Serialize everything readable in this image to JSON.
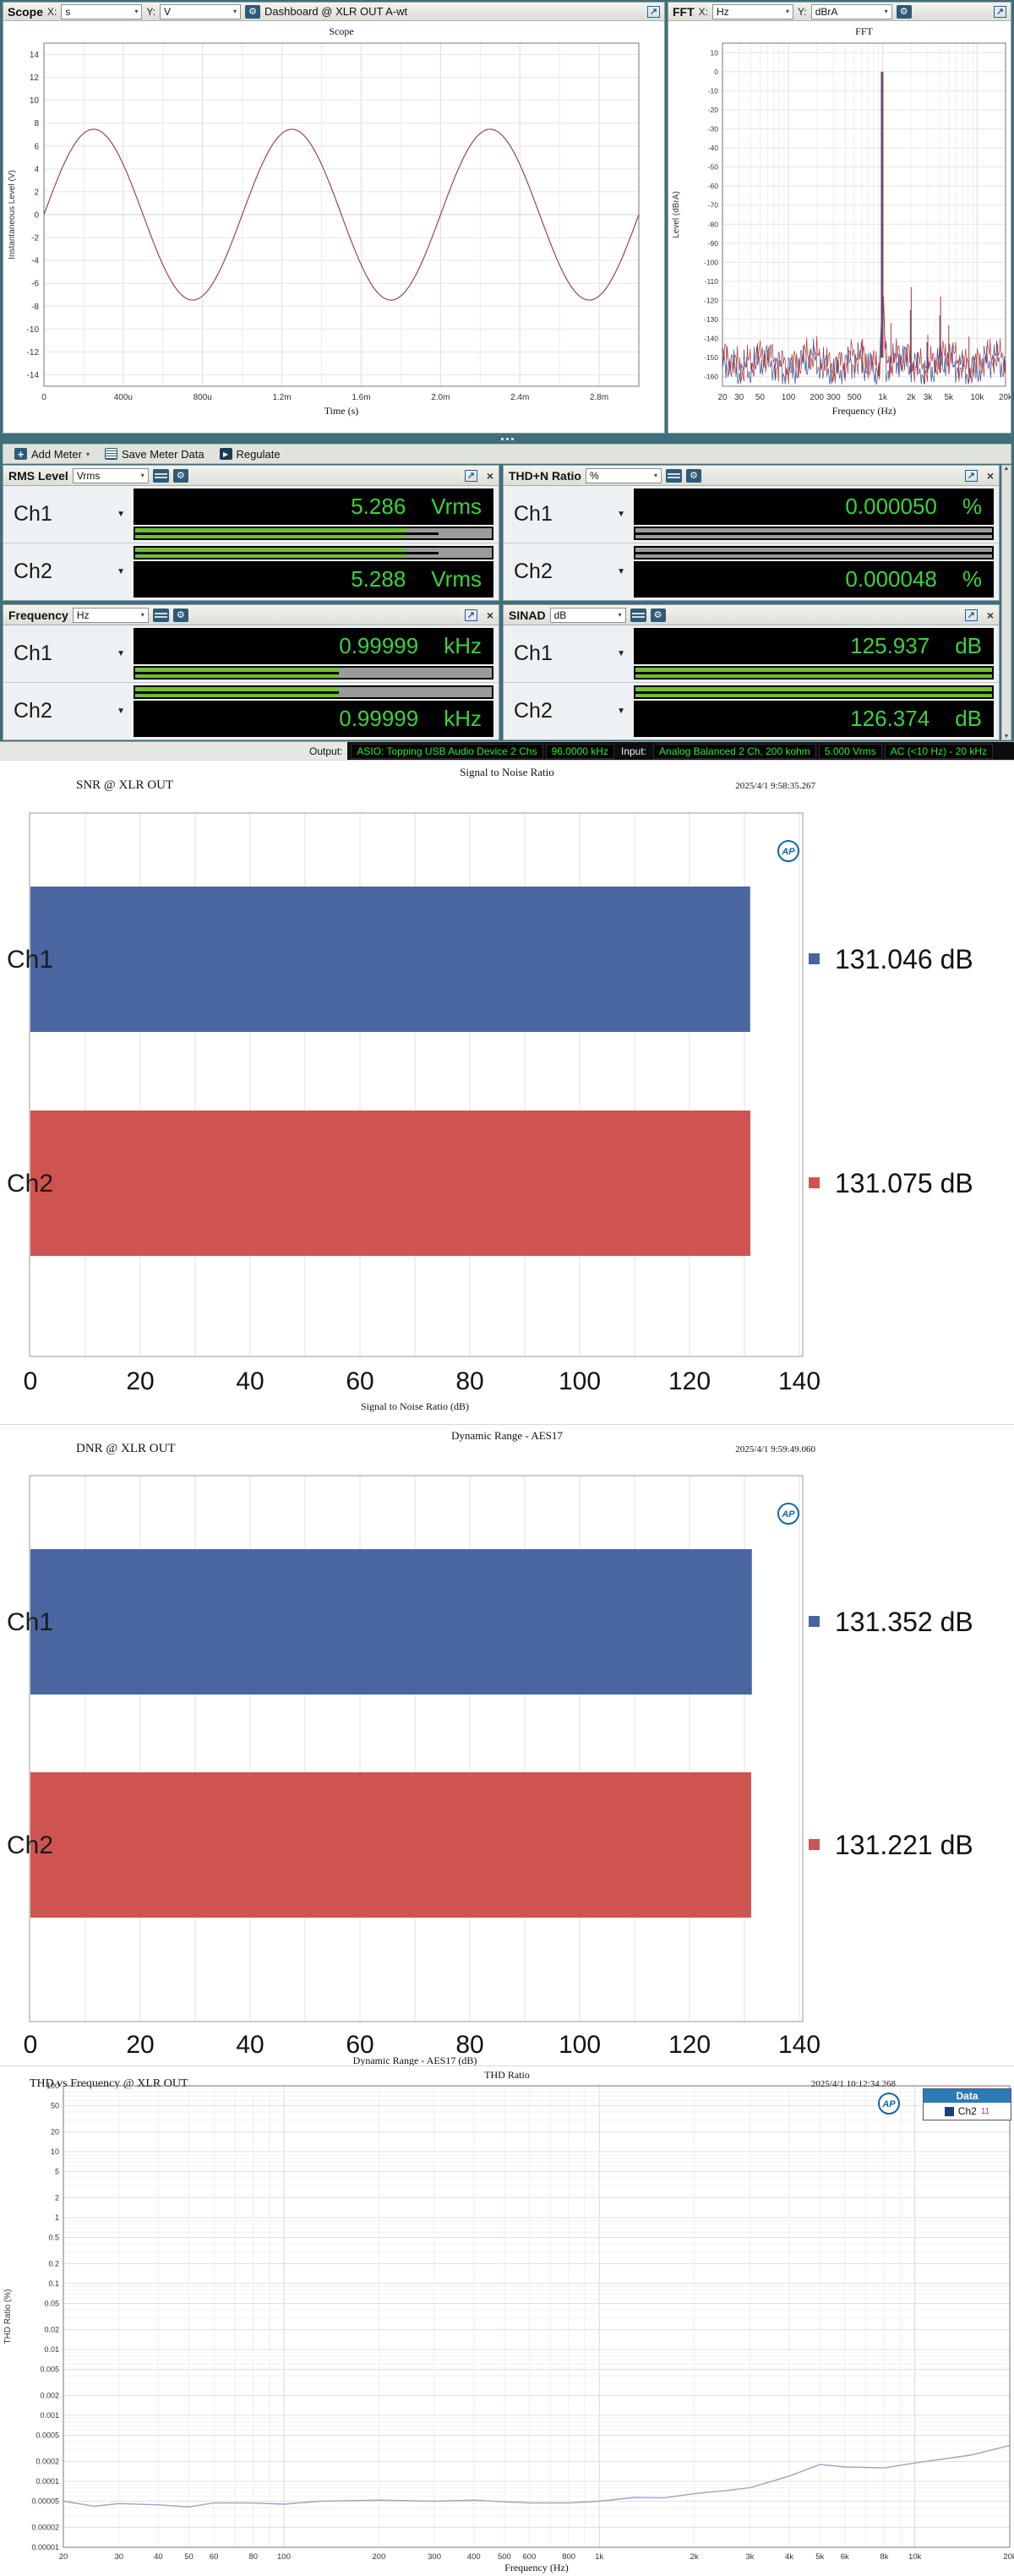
{
  "window": {
    "scope_header": {
      "title": "Scope",
      "x_label": "X:",
      "x_unit": "s",
      "y_label": "Y:",
      "y_unit": "V",
      "nav_button": "Dashboard @ XLR OUT A-wt"
    },
    "fft_header": {
      "title": "FFT",
      "x_label": "X:",
      "x_unit": "Hz",
      "y_label": "Y:",
      "y_unit": "dBrA"
    }
  },
  "toolbar": {
    "add_meter": "Add Meter",
    "save_meter_data": "Save Meter Data",
    "regulate": "Regulate"
  },
  "meters": [
    {
      "name": "RMS Level",
      "unit": "Vrms",
      "channels": [
        {
          "label": "Ch1",
          "value": "5.286",
          "unit": "Vrms",
          "bar_fill": 0.76,
          "bar_line": 0.85,
          "bar_color": "green"
        },
        {
          "label": "Ch2",
          "value": "5.288",
          "unit": "Vrms",
          "bar_fill": 0.76,
          "bar_line": 0.85,
          "bar_color": "green"
        }
      ]
    },
    {
      "name": "THD+N Ratio",
      "unit": "%",
      "channels": [
        {
          "label": "Ch1",
          "value": "0.000050",
          "unit": "%",
          "bar_fill": 0,
          "bar_line": 1,
          "bar_color": "gray"
        },
        {
          "label": "Ch2",
          "value": "0.000048",
          "unit": "%",
          "bar_fill": 0,
          "bar_line": 1,
          "bar_color": "gray"
        }
      ]
    },
    {
      "name": "Frequency",
      "unit": "Hz",
      "channels": [
        {
          "label": "Ch1",
          "value": "0.99999",
          "unit": "kHz",
          "bar_fill": 0.57,
          "bar_line": 0.57,
          "bar_color": "green"
        },
        {
          "label": "Ch2",
          "value": "0.99999",
          "unit": "kHz",
          "bar_fill": 0.57,
          "bar_line": 0.57,
          "bar_color": "green"
        }
      ]
    },
    {
      "name": "SINAD",
      "unit": "dB",
      "channels": [
        {
          "label": "Ch1",
          "value": "125.937",
          "unit": "dB",
          "bar_fill": 1,
          "bar_line": 1,
          "bar_color": "green"
        },
        {
          "label": "Ch2",
          "value": "126.374",
          "unit": "dB",
          "bar_fill": 1,
          "bar_line": 1,
          "bar_color": "green"
        }
      ]
    }
  ],
  "status_bar": {
    "output_label": "Output:",
    "output_badges": [
      "ASIO: Topping USB Audio Device 2 Chs",
      "96.0000 kHz"
    ],
    "input_label": "Input:",
    "input_badges": [
      "Analog Balanced 2 Ch, 200 kohm",
      "5.000 Vrms",
      "AC (<10 Hz) - 20 kHz"
    ]
  },
  "chart_data": [
    {
      "id": "scope",
      "type": "line",
      "title": "Scope",
      "xlabel": "Time (s)",
      "ylabel": "Instantaneous Level (V)",
      "xlim": [
        0,
        0.003
      ],
      "ylim": [
        -15,
        15
      ],
      "y_tick_step": 2,
      "y_tick_range": [
        -14,
        14
      ],
      "x_ticks": [
        "0",
        "400u",
        "800u",
        "1.2m",
        "1.6m",
        "2.0m",
        "2.4m",
        "2.8m"
      ],
      "signal": {
        "shape": "sine",
        "frequency_hz": 1000,
        "amplitude_v": 7.47,
        "cycles_shown": 3
      },
      "color": "#8f3744"
    },
    {
      "id": "fft",
      "type": "line",
      "title": "FFT",
      "xlabel": "Frequency (Hz)",
      "ylabel": "Level (dBrA)",
      "xlim": [
        20,
        20000
      ],
      "x_log": true,
      "ylim": [
        -165,
        15
      ],
      "y_ticks_db": {
        "top": 10,
        "bottom": -160,
        "step": 10
      },
      "x_ticks": [
        "20",
        "30",
        "50",
        "100",
        "200",
        "300",
        "500",
        "1k",
        "2k",
        "3k",
        "5k",
        "10k",
        "20k"
      ],
      "fundamental": {
        "freq_hz": 1000,
        "level_db": 0
      },
      "noise_floor_db": -152,
      "spurs_ch2": [
        [
          610,
          -140
        ],
        [
          1220,
          -132
        ],
        [
          2000,
          -113
        ],
        [
          3000,
          -138
        ],
        [
          4100,
          -118
        ],
        [
          5000,
          -133
        ],
        [
          8200,
          -139
        ]
      ],
      "spurs_ch1": [
        [
          1500,
          -148
        ],
        [
          2000,
          -125
        ],
        [
          3000,
          -142
        ],
        [
          4100,
          -128
        ]
      ],
      "series": [
        {
          "name": "Ch1",
          "color": "#3a4f93"
        },
        {
          "name": "Ch2",
          "color": "#b13434"
        }
      ]
    },
    {
      "id": "snr",
      "type": "bar",
      "header": "SNR @ XLR OUT",
      "title": "Signal to Noise Ratio",
      "timestamp": "2025/4/1 9:58:35.267",
      "xlabel": "Signal to Noise Ratio (dB)",
      "xlim": [
        0,
        140
      ],
      "x_tick_step": 20,
      "grid_step": 10,
      "categories": [
        "Ch1",
        "Ch2"
      ],
      "values": [
        131.046,
        131.075
      ],
      "value_labels": [
        "131.046 dB",
        "131.075 dB"
      ],
      "colors": [
        "#4a66a0",
        "#cf5450"
      ]
    },
    {
      "id": "dnr",
      "type": "bar",
      "header": "DNR @ XLR OUT",
      "title": "Dynamic Range - AES17",
      "timestamp": "2025/4/1 9:59:49.060",
      "xlabel": "Dynamic Range - AES17 (dB)",
      "xlim": [
        0,
        140
      ],
      "x_tick_step": 20,
      "grid_step": 10,
      "categories": [
        "Ch1",
        "Ch2"
      ],
      "values": [
        131.352,
        131.221
      ],
      "value_labels": [
        "131.352 dB",
        "131.221 dB"
      ],
      "colors": [
        "#4a66a0",
        "#cf5450"
      ]
    },
    {
      "id": "thd",
      "type": "line",
      "header": "THD vs Frequency @ XLR OUT",
      "title": "THD Ratio",
      "timestamp": "2025/4/1 10:12:34.268",
      "xlabel": "Frequency (Hz)",
      "ylabel": "THD Ratio (%)",
      "x_log": true,
      "y_log": true,
      "xlim": [
        20,
        20000
      ],
      "ylim": [
        1e-05,
        100
      ],
      "y_tick_labels": [
        "100",
        "50",
        "20",
        "10",
        "5",
        "2",
        "1",
        "0.5",
        "0.2",
        "0.1",
        "0.05",
        "0.02",
        "0.01",
        "0.005",
        "0.002",
        "0.001",
        "0.0005",
        "0.0002",
        "0.0001",
        "0.00005",
        "0.00002",
        "0.00001"
      ],
      "x_tick_labels": [
        "20",
        "30",
        "40",
        "50",
        "60",
        "80",
        "100",
        "200",
        "300",
        "400",
        "500",
        "600",
        "800",
        "1k",
        "2k",
        "3k",
        "4k",
        "5k",
        "6k",
        "8k",
        "10k",
        "20k"
      ],
      "legend": {
        "header": "Data",
        "series": "Ch2",
        "annotation": "11",
        "color": "#1d3d7a"
      },
      "color": "#9aa5c4",
      "points": [
        [
          20,
          5e-05
        ],
        [
          25,
          4.2e-05
        ],
        [
          30,
          4.6e-05
        ],
        [
          40,
          4.4e-05
        ],
        [
          50,
          4.1e-05
        ],
        [
          60,
          4.7e-05
        ],
        [
          80,
          4.7e-05
        ],
        [
          100,
          4.5e-05
        ],
        [
          130,
          5e-05
        ],
        [
          200,
          5.2e-05
        ],
        [
          300,
          5e-05
        ],
        [
          400,
          5.2e-05
        ],
        [
          500,
          4.9e-05
        ],
        [
          600,
          4.7e-05
        ],
        [
          800,
          4.7e-05
        ],
        [
          1000,
          5e-05
        ],
        [
          1300,
          5.7e-05
        ],
        [
          1600,
          5.6e-05
        ],
        [
          2000,
          6.5e-05
        ],
        [
          2500,
          7.2e-05
        ],
        [
          3000,
          8e-05
        ],
        [
          4000,
          0.00012
        ],
        [
          5000,
          0.00018
        ],
        [
          6000,
          0.000165
        ],
        [
          8000,
          0.00016
        ],
        [
          10000,
          0.00019
        ],
        [
          15000,
          0.00025
        ],
        [
          20000,
          0.00035
        ]
      ]
    }
  ]
}
